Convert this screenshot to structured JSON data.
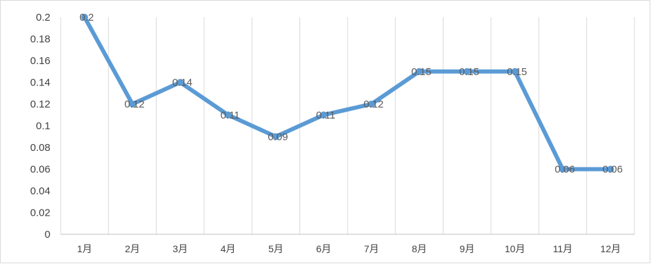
{
  "chart_data": {
    "type": "line",
    "title": "",
    "xlabel": "",
    "ylabel": "",
    "categories": [
      "1月",
      "2月",
      "3月",
      "4月",
      "5月",
      "6月",
      "7月",
      "8月",
      "9月",
      "10月",
      "11月",
      "12月"
    ],
    "series": [
      {
        "values": [
          0.2,
          0.12,
          0.14,
          0.11,
          0.09,
          0.11,
          0.12,
          0.15,
          0.15,
          0.15,
          0.06,
          0.06
        ],
        "data_labels": [
          "0.2",
          "0.12",
          "0.14",
          "0.11",
          "0.09",
          "0.11",
          "0.12",
          "0.15",
          "0.15",
          "0.15",
          "0.06",
          "0.06"
        ]
      }
    ],
    "ylim": [
      0,
      0.2
    ],
    "y_ticks": [
      0,
      0.02,
      0.04,
      0.06,
      0.08,
      0.1,
      0.12,
      0.14,
      0.16,
      0.18,
      0.2
    ],
    "y_tick_labels": [
      "0",
      "0.02",
      "0.04",
      "0.06",
      "0.08",
      "0.1",
      "0.12",
      "0.14",
      "0.16",
      "0.18",
      "0.2"
    ],
    "grid": "vertical",
    "legend": "none",
    "colors": {
      "line": "#5b9bd5",
      "grid": "#d9d9d9",
      "axis": "#bfbfbf",
      "tick_text": "#404040",
      "data_label_text": "#595959"
    }
  }
}
